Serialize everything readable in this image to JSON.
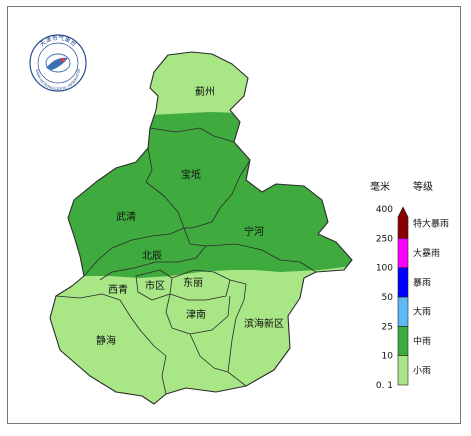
{
  "logo": {
    "text": "天津市气象台",
    "text_en": "TIANJIN METEOROLOGICAL OBSERVATORY"
  },
  "districts": [
    {
      "id": "jizhou",
      "label": "蓟州"
    },
    {
      "id": "baodi",
      "label": "宝坻"
    },
    {
      "id": "wuqing",
      "label": "武清"
    },
    {
      "id": "ninghe",
      "label": "宁河"
    },
    {
      "id": "beichen",
      "label": "北辰"
    },
    {
      "id": "xiqing",
      "label": "西青"
    },
    {
      "id": "shiqu",
      "label": "市区"
    },
    {
      "id": "dongli",
      "label": "东丽"
    },
    {
      "id": "jinnan",
      "label": "津南"
    },
    {
      "id": "jinghai",
      "label": "静海"
    },
    {
      "id": "binhai",
      "label": "滨海新区"
    }
  ],
  "legend": {
    "unit_label": "毫米",
    "grade_header": "等级",
    "ticks": [
      "0. 1",
      "10",
      "25",
      "50",
      "100",
      "250",
      "400"
    ],
    "grades": [
      {
        "label": "小雨",
        "color": "#a8e686"
      },
      {
        "label": "中雨",
        "color": "#3fab3f"
      },
      {
        "label": "大雨",
        "color": "#5fb9f2"
      },
      {
        "label": "暴雨",
        "color": "#0000fe"
      },
      {
        "label": "大暴雨",
        "color": "#fd00fe"
      },
      {
        "label": "特大暴雨",
        "color": "#8a0000"
      }
    ]
  },
  "colors": {
    "light_rain": "#a8e686",
    "moderate_rain": "#3fab3f",
    "boundary": "#2b2b2b",
    "frame": "#777777"
  }
}
